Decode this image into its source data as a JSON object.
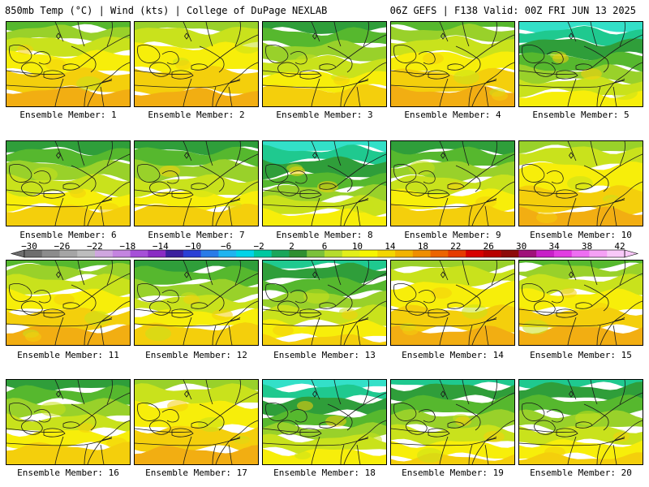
{
  "header": {
    "left": "850mb Temp (°C) | Wind (kts) | College of DuPage NEXLAB",
    "right": "06Z GEFS | F138 Valid: 00Z FRI JUN 13 2025"
  },
  "colorbar": {
    "labels": [
      "−30",
      "−26",
      "−22",
      "−18",
      "−14",
      "−10",
      "−6",
      "−2",
      "2",
      "6",
      "10",
      "14",
      "18",
      "22",
      "26",
      "30",
      "34",
      "38",
      "42"
    ],
    "colors": [
      "#6e6e6e",
      "#8c8c8c",
      "#a5a5a5",
      "#bdbdbd",
      "#cfa6df",
      "#c484e0",
      "#a64fd8",
      "#8a2bc4",
      "#3b1f9e",
      "#2b3fd6",
      "#2a7be8",
      "#1fb4f0",
      "#00d3e8",
      "#00c8a0",
      "#1aa65a",
      "#2f8f2f",
      "#7cc13a",
      "#b6dc2c",
      "#e2ee1a",
      "#f7f500",
      "#f4d600",
      "#f2b300",
      "#ef8e00",
      "#ec6400",
      "#e63a00",
      "#d80000",
      "#b80000",
      "#8e0a0a",
      "#a0107a",
      "#c81fc8",
      "#e23ce2",
      "#ee6ef2",
      "#f5a0f5",
      "#f8c8f8"
    ]
  },
  "panels": [
    {
      "label": "Ensemble Member: 1",
      "cool": 0.3
    },
    {
      "label": "Ensemble Member: 2",
      "cool": 0.15
    },
    {
      "label": "Ensemble Member: 3",
      "cool": 0.45
    },
    {
      "label": "Ensemble Member: 4",
      "cool": 0.3
    },
    {
      "label": "Ensemble Member: 5",
      "cool": 0.85
    },
    {
      "label": "Ensemble Member: 6",
      "cool": 0.5
    },
    {
      "label": "Ensemble Member: 7",
      "cool": 0.5
    },
    {
      "label": "Ensemble Member: 8",
      "cool": 0.9
    },
    {
      "label": "Ensemble Member: 9",
      "cool": 0.55
    },
    {
      "label": "Ensemble Member: 10",
      "cool": 0.05
    },
    {
      "label": "Ensemble Member: 11",
      "cool": 0.35
    },
    {
      "label": "Ensemble Member: 12",
      "cool": 0.45
    },
    {
      "label": "Ensemble Member: 13",
      "cool": 0.8
    },
    {
      "label": "Ensemble Member: 14",
      "cool": 0.2
    },
    {
      "label": "Ensemble Member: 15",
      "cool": 0.25
    },
    {
      "label": "Ensemble Member: 16",
      "cool": 0.6
    },
    {
      "label": "Ensemble Member: 17",
      "cool": 0.15
    },
    {
      "label": "Ensemble Member: 18",
      "cool": 0.95
    },
    {
      "label": "Ensemble Member: 19",
      "cool": 0.7
    },
    {
      "label": "Ensemble Member: 20",
      "cool": 0.8
    }
  ],
  "palette": {
    "cyan": "#33e0c8",
    "teal": "#1fc98f",
    "dgreen": "#2f9e3a",
    "green": "#56b82e",
    "lgreen": "#99d12a",
    "ygreen": "#c9e21c",
    "yellow": "#f7ee0a",
    "ltorange": "#f4cf0c",
    "orange": "#f2ae12"
  }
}
